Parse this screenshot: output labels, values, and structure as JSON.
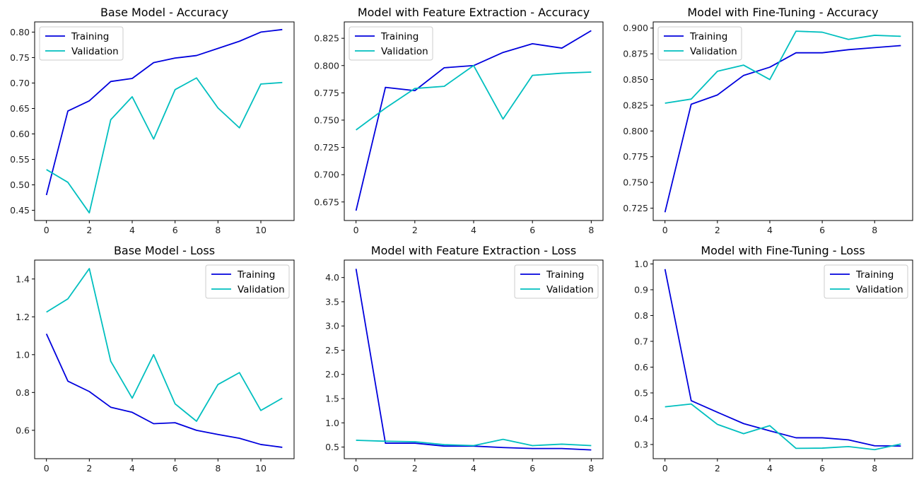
{
  "chart_data": [
    {
      "type": "line",
      "title": "Base Model - Accuracy",
      "x": [
        0,
        1,
        2,
        3,
        4,
        5,
        6,
        7,
        8,
        9,
        10,
        11
      ],
      "xlim": [
        -0.55,
        11.55
      ],
      "xticks": [
        0,
        2,
        4,
        6,
        8,
        10
      ],
      "ylim": [
        0.43,
        0.82
      ],
      "yticks": [
        0.45,
        0.5,
        0.55,
        0.6,
        0.65,
        0.7,
        0.75,
        0.8
      ],
      "ytick_labels": [
        "0.45",
        "0.50",
        "0.55",
        "0.60",
        "0.65",
        "0.70",
        "0.75",
        "0.80"
      ],
      "legend_position": "upper-left",
      "series": [
        {
          "name": "Training",
          "color": "#0000dd",
          "values": [
            0.48,
            0.645,
            0.665,
            0.703,
            0.709,
            0.74,
            0.749,
            0.754,
            0.768,
            0.782,
            0.8,
            0.805
          ]
        },
        {
          "name": "Validation",
          "color": "#00bfbf",
          "values": [
            0.53,
            0.505,
            0.445,
            0.628,
            0.673,
            0.59,
            0.687,
            0.71,
            0.651,
            0.612,
            0.698,
            0.701
          ]
        }
      ]
    },
    {
      "type": "line",
      "title": "Model with Feature Extraction - Accuracy",
      "x": [
        0,
        1,
        2,
        3,
        4,
        5,
        6,
        7,
        8
      ],
      "xlim": [
        -0.4,
        8.4
      ],
      "xticks": [
        0,
        2,
        4,
        6,
        8
      ],
      "ylim": [
        0.658,
        0.84
      ],
      "yticks": [
        0.675,
        0.7,
        0.725,
        0.75,
        0.775,
        0.8,
        0.825
      ],
      "ytick_labels": [
        "0.675",
        "0.700",
        "0.725",
        "0.750",
        "0.775",
        "0.800",
        "0.825"
      ],
      "legend_position": "upper-left",
      "series": [
        {
          "name": "Training",
          "color": "#0000dd",
          "values": [
            0.667,
            0.78,
            0.777,
            0.798,
            0.8,
            0.812,
            0.82,
            0.816,
            0.832
          ]
        },
        {
          "name": "Validation",
          "color": "#00bfbf",
          "values": [
            0.741,
            0.761,
            0.779,
            0.781,
            0.8,
            0.751,
            0.791,
            0.793,
            0.794
          ]
        }
      ]
    },
    {
      "type": "line",
      "title": "Model with Fine-Tuning - Accuracy",
      "x": [
        0,
        1,
        2,
        3,
        4,
        5,
        6,
        7,
        8,
        9
      ],
      "xlim": [
        -0.45,
        9.45
      ],
      "xticks": [
        0,
        2,
        4,
        6,
        8
      ],
      "ylim": [
        0.713,
        0.906
      ],
      "yticks": [
        0.725,
        0.75,
        0.775,
        0.8,
        0.825,
        0.85,
        0.875,
        0.9
      ],
      "ytick_labels": [
        "0.725",
        "0.750",
        "0.775",
        "0.800",
        "0.825",
        "0.850",
        "0.875",
        "0.900"
      ],
      "legend_position": "upper-left",
      "series": [
        {
          "name": "Training",
          "color": "#0000dd",
          "values": [
            0.721,
            0.826,
            0.835,
            0.854,
            0.862,
            0.876,
            0.876,
            0.879,
            0.881,
            0.883
          ]
        },
        {
          "name": "Validation",
          "color": "#00bfbf",
          "values": [
            0.827,
            0.831,
            0.858,
            0.864,
            0.85,
            0.897,
            0.896,
            0.889,
            0.893,
            0.892
          ]
        }
      ]
    },
    {
      "type": "line",
      "title": "Base Model - Loss",
      "x": [
        0,
        1,
        2,
        3,
        4,
        5,
        6,
        7,
        8,
        9,
        10,
        11
      ],
      "xlim": [
        -0.55,
        11.55
      ],
      "xticks": [
        0,
        2,
        4,
        6,
        8,
        10
      ],
      "ylim": [
        0.45,
        1.5
      ],
      "yticks": [
        0.6,
        0.8,
        1.0,
        1.2,
        1.4
      ],
      "ytick_labels": [
        "0.6",
        "0.8",
        "1.0",
        "1.2",
        "1.4"
      ],
      "legend_position": "upper-right",
      "series": [
        {
          "name": "Training",
          "color": "#0000dd",
          "values": [
            1.11,
            0.86,
            0.805,
            0.722,
            0.695,
            0.635,
            0.64,
            0.6,
            0.578,
            0.558,
            0.525,
            0.51
          ]
        },
        {
          "name": "Validation",
          "color": "#00bfbf",
          "values": [
            1.225,
            1.295,
            1.455,
            0.965,
            0.77,
            1.0,
            0.74,
            0.648,
            0.842,
            0.905,
            0.705,
            0.77
          ]
        }
      ]
    },
    {
      "type": "line",
      "title": "Model with Feature Extraction - Loss",
      "x": [
        0,
        1,
        2,
        3,
        4,
        5,
        6,
        7,
        8
      ],
      "xlim": [
        -0.4,
        8.4
      ],
      "xticks": [
        0,
        2,
        4,
        6,
        8
      ],
      "ylim": [
        0.26,
        4.36
      ],
      "yticks": [
        0.5,
        1.0,
        1.5,
        2.0,
        2.5,
        3.0,
        3.5,
        4.0
      ],
      "ytick_labels": [
        "0.5",
        "1.0",
        "1.5",
        "2.0",
        "2.5",
        "3.0",
        "3.5",
        "4.0"
      ],
      "legend_position": "upper-right",
      "series": [
        {
          "name": "Training",
          "color": "#0000dd",
          "values": [
            4.18,
            0.58,
            0.58,
            0.52,
            0.52,
            0.49,
            0.47,
            0.47,
            0.44
          ]
        },
        {
          "name": "Validation",
          "color": "#00bfbf",
          "values": [
            0.64,
            0.62,
            0.61,
            0.55,
            0.53,
            0.66,
            0.53,
            0.56,
            0.53
          ]
        }
      ]
    },
    {
      "type": "line",
      "title": "Model with Fine-Tuning - Loss",
      "x": [
        0,
        1,
        2,
        3,
        4,
        5,
        6,
        7,
        8,
        9
      ],
      "xlim": [
        -0.45,
        9.45
      ],
      "xticks": [
        0,
        2,
        4,
        6,
        8
      ],
      "ylim": [
        0.245,
        1.015
      ],
      "yticks": [
        0.3,
        0.4,
        0.5,
        0.6,
        0.7,
        0.8,
        0.9,
        1.0
      ],
      "ytick_labels": [
        "0.3",
        "0.4",
        "0.5",
        "0.6",
        "0.7",
        "0.8",
        "0.9",
        "1.0"
      ],
      "legend_position": "upper-right",
      "series": [
        {
          "name": "Training",
          "color": "#0000dd",
          "values": [
            0.98,
            0.47,
            0.425,
            0.381,
            0.353,
            0.326,
            0.326,
            0.318,
            0.295,
            0.294
          ]
        },
        {
          "name": "Validation",
          "color": "#00bfbf",
          "values": [
            0.446,
            0.457,
            0.378,
            0.342,
            0.373,
            0.285,
            0.286,
            0.292,
            0.28,
            0.302
          ]
        }
      ]
    }
  ]
}
